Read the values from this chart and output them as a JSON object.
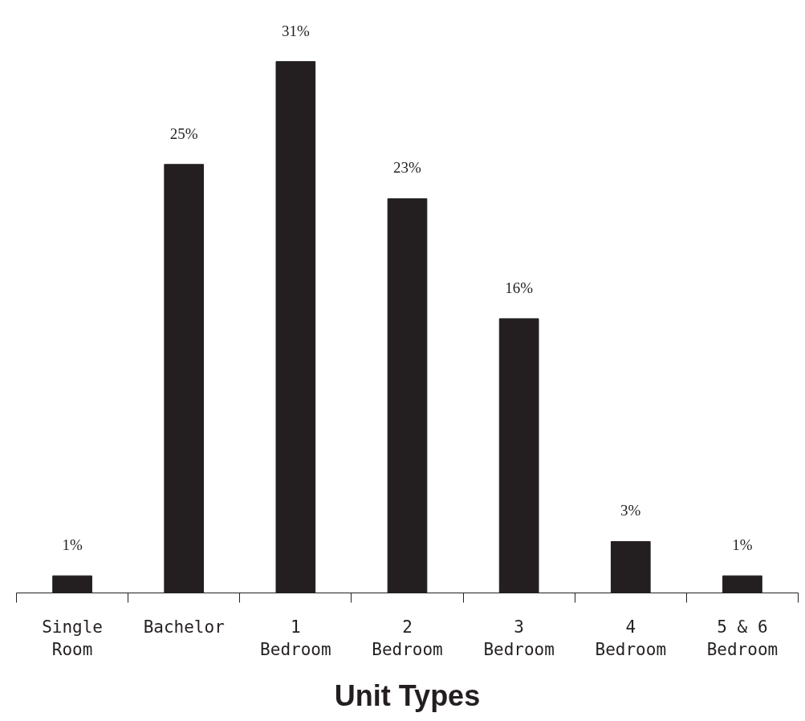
{
  "chart_data": {
    "type": "bar",
    "xlabel": "Unit Types",
    "categories": [
      "Single\nRoom",
      "Bachelor",
      "1\nBedroom",
      "2\nBedroom",
      "3\nBedroom",
      "4\nBedroom",
      "5 & 6\nBedroom"
    ],
    "values": [
      1,
      25,
      31,
      23,
      16,
      3,
      1
    ],
    "value_labels": [
      "1%",
      "25%",
      "31%",
      "23%",
      "16%",
      "3%",
      "1%"
    ],
    "color": "#231f20"
  }
}
